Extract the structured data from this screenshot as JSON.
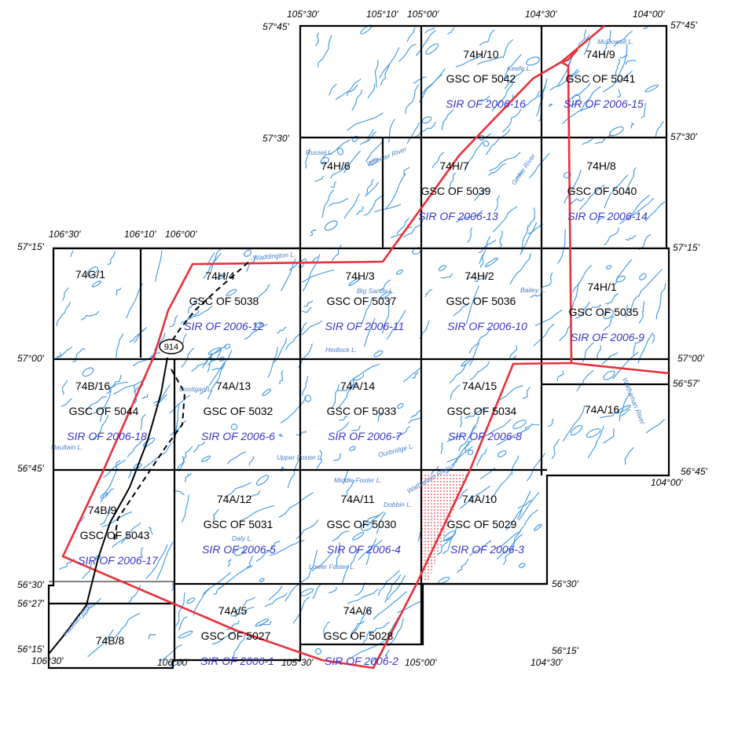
{
  "coords": {
    "lon_top": [
      "105°30'",
      "105°10'",
      "105°00'",
      "104°30'",
      "104°00'"
    ],
    "lat_right": [
      "57°45'",
      "57°30'",
      "57°15'",
      "57°00'",
      "56°57'",
      "56°45'",
      "56°30'",
      "56°15'"
    ],
    "lat_left": [
      "57°45'",
      "57°30'",
      "57°15'",
      "57°00'",
      "56°45'",
      "56°30'",
      "56°27'",
      "56°15'"
    ],
    "lon_mid": [
      "106°30'",
      "106°10'",
      "106°00'"
    ],
    "lon_right_lower": "104°00'",
    "lon_bottom": [
      "106°30'",
      "106°00'",
      "105°30'",
      "105°00'",
      "104°30'"
    ]
  },
  "sheets": [
    {
      "sheet": "74H/10",
      "gsc": "GSC OF 5042",
      "sir": "SIR OF 2006-16"
    },
    {
      "sheet": "74H/9",
      "gsc": "GSC OF 5041",
      "sir": "SIR OF 2006-15"
    },
    {
      "sheet": "74H/6",
      "gsc": "",
      "sir": ""
    },
    {
      "sheet": "74H/7",
      "gsc": "GSC OF 5039",
      "sir": "SIR OF 2006-13"
    },
    {
      "sheet": "74H/8",
      "gsc": "GSC OF 5040",
      "sir": "SIR OF 2006-14"
    },
    {
      "sheet": "74G/1",
      "gsc": "",
      "sir": ""
    },
    {
      "sheet": "74H/4",
      "gsc": "GSC OF 5038",
      "sir": "SIR OF 2006-12"
    },
    {
      "sheet": "74H/3",
      "gsc": "GSC OF 5037",
      "sir": "SIR OF 2006-11"
    },
    {
      "sheet": "74H/2",
      "gsc": "GSC OF 5036",
      "sir": "SIR OF 2006-10"
    },
    {
      "sheet": "74H/1",
      "gsc": "GSC OF 5035",
      "sir": "SIR OF 2006-9"
    },
    {
      "sheet": "74B/16",
      "gsc": "GSC OF 5044",
      "sir": "SIR OF 2006-18"
    },
    {
      "sheet": "74A/13",
      "gsc": "GSC OF 5032",
      "sir": "SIR OF 2006-6"
    },
    {
      "sheet": "74A/14",
      "gsc": "GSC OF 5033",
      "sir": "SIR OF 2006-7"
    },
    {
      "sheet": "74A/15",
      "gsc": "GSC OF 5034",
      "sir": "SIR OF 2006-8"
    },
    {
      "sheet": "74A/16",
      "gsc": "",
      "sir": ""
    },
    {
      "sheet": "74B/9",
      "gsc": "GSC OF 5043",
      "sir": "SIR OF 2006-17"
    },
    {
      "sheet": "74A/12",
      "gsc": "GSC OF 5031",
      "sir": "SIR OF 2006-5"
    },
    {
      "sheet": "74A/11",
      "gsc": "GSC OF 5030",
      "sir": "SIR OF 2006-4"
    },
    {
      "sheet": "74A/10",
      "gsc": "GSC OF 5029",
      "sir": "SIR OF 2006-3"
    },
    {
      "sheet": "74B/8",
      "gsc": "",
      "sir": ""
    },
    {
      "sheet": "74A/5",
      "gsc": "GSC OF 5027",
      "sir": "SIR OF 2006-1"
    },
    {
      "sheet": "74A/6",
      "gsc": "GSC OF 5028",
      "sir": "SIR OF 2006-2"
    }
  ],
  "lakes": [
    "McDowell L.",
    "Keefe L.",
    "Russel L.",
    "Wheeler River",
    "Geikie River",
    "Waddington L.",
    "Big Sandy L.",
    "Bailey L.",
    "Hedlock L.",
    "Costigan L.",
    "Haultain L.",
    "Upper Foster L.",
    "Ourbridge L.",
    "Wathaman River",
    "Middle Foster L.",
    "Dobbin L.",
    "Daly L.",
    "Lower Foster L.",
    "Haultain River",
    "Wathaman River"
  ],
  "highway": "914",
  "colors": {
    "water": "#3d95e0",
    "boundary": "#e8303a",
    "sir_text": "#3a33c8",
    "grid": "#000000"
  }
}
